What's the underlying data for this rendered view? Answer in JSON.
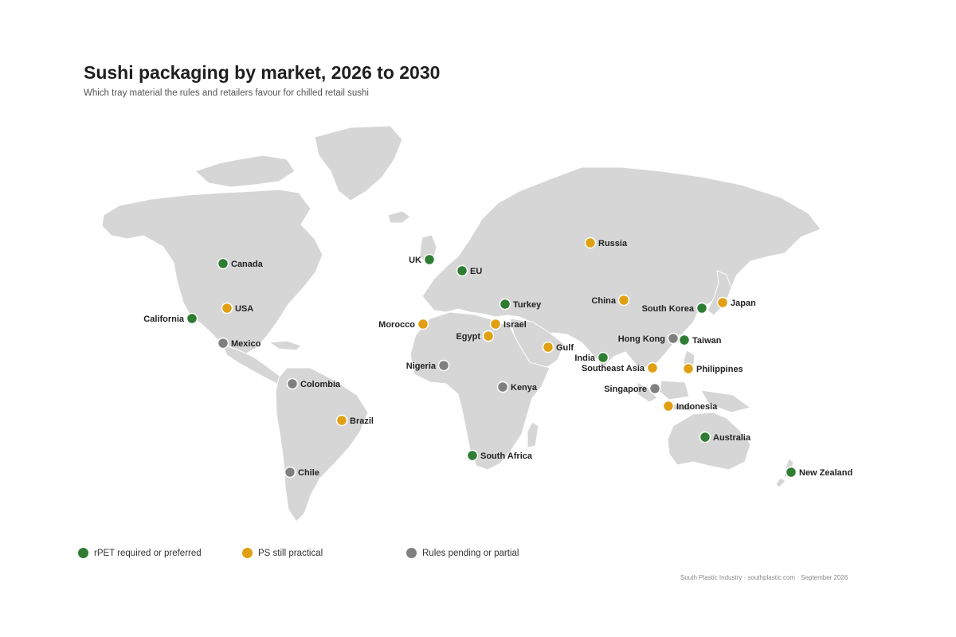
{
  "title": "Sushi packaging by market, 2026 to 2030",
  "subtitle": "Which tray material the rules and retailers favour for chilled retail sushi",
  "colors": {
    "rpet": "#2e7d32",
    "ps": "#e0a012",
    "pending": "#7f7f7f",
    "land": "#d6d6d6"
  },
  "legend": [
    {
      "status": "rpet",
      "label": "rPET required or preferred"
    },
    {
      "status": "ps",
      "label": "PS still practical"
    },
    {
      "status": "pending",
      "label": "Rules pending or partial"
    }
  ],
  "markets": [
    {
      "name": "Canada",
      "status": "rpet"
    },
    {
      "name": "USA",
      "status": "ps"
    },
    {
      "name": "California",
      "status": "rpet"
    },
    {
      "name": "Mexico",
      "status": "pending"
    },
    {
      "name": "Colombia",
      "status": "pending"
    },
    {
      "name": "Brazil",
      "status": "ps"
    },
    {
      "name": "Chile",
      "status": "pending"
    },
    {
      "name": "UK",
      "status": "rpet"
    },
    {
      "name": "EU",
      "status": "rpet"
    },
    {
      "name": "Morocco",
      "status": "ps"
    },
    {
      "name": "Israel",
      "status": "ps"
    },
    {
      "name": "Egypt",
      "status": "ps"
    },
    {
      "name": "Turkey",
      "status": "rpet"
    },
    {
      "name": "Nigeria",
      "status": "pending"
    },
    {
      "name": "Kenya",
      "status": "pending"
    },
    {
      "name": "South Africa",
      "status": "rpet"
    },
    {
      "name": "Gulf",
      "status": "ps"
    },
    {
      "name": "Russia",
      "status": "ps"
    },
    {
      "name": "China",
      "status": "ps"
    },
    {
      "name": "India",
      "status": "rpet"
    },
    {
      "name": "South Korea",
      "status": "rpet"
    },
    {
      "name": "Japan",
      "status": "ps"
    },
    {
      "name": "Hong Kong",
      "status": "pending"
    },
    {
      "name": "Taiwan",
      "status": "rpet"
    },
    {
      "name": "Southeast Asia",
      "status": "ps"
    },
    {
      "name": "Philippines",
      "status": "ps"
    },
    {
      "name": "Singapore",
      "status": "pending"
    },
    {
      "name": "Indonesia",
      "status": "ps"
    },
    {
      "name": "Australia",
      "status": "rpet"
    },
    {
      "name": "New Zealand",
      "status": "rpet"
    }
  ],
  "footer": "South Plastic Industry · southplastic.com · September 2026"
}
